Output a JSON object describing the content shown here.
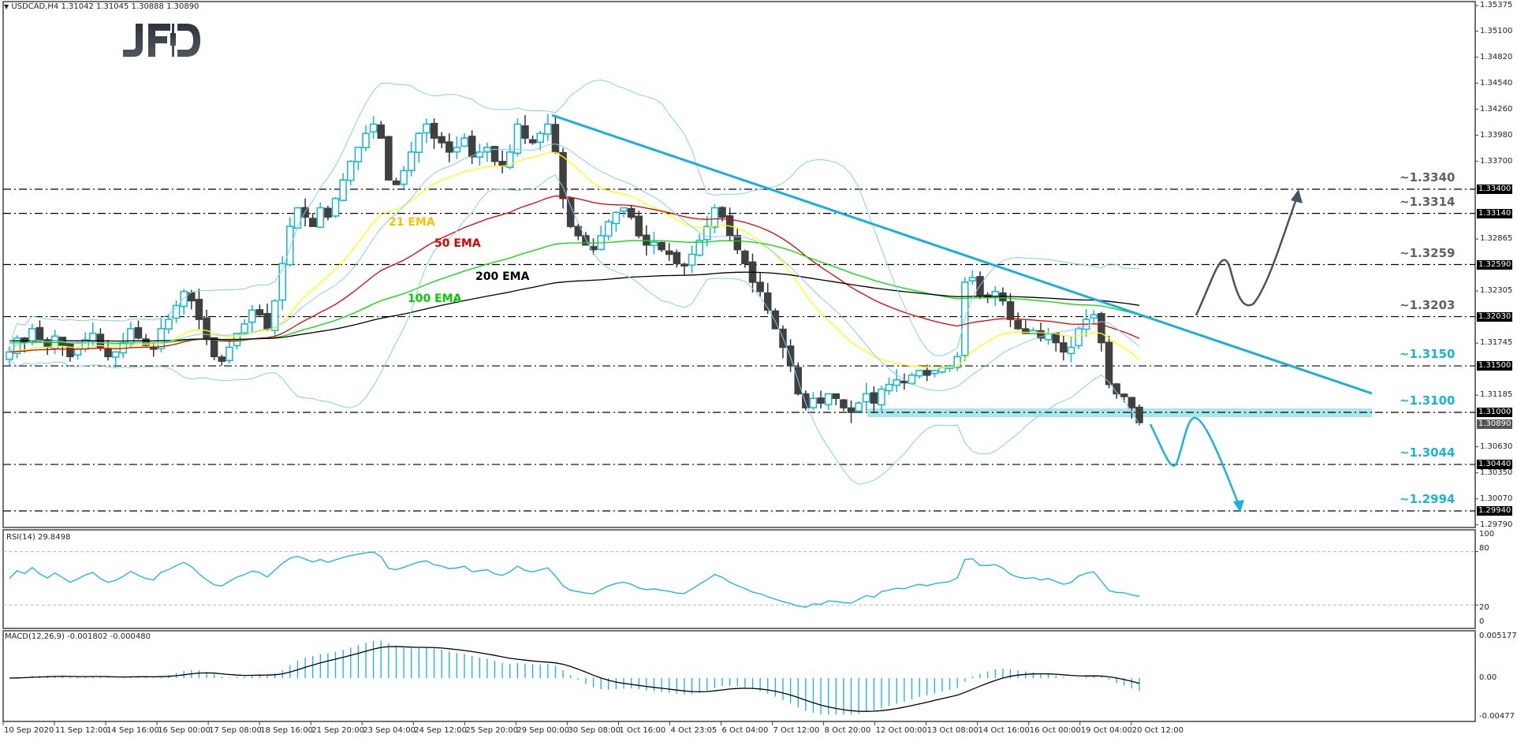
{
  "header": {
    "symbol_info": "USDCAD,H4  1.31042 1.31045 1.30888 1.30890",
    "logo": "JFD"
  },
  "colors": {
    "bull": "#12b5d6",
    "bear": "#404040",
    "trendline": "#1aaed8",
    "bollinger": "#87ceeb",
    "ema21": "#ffff00",
    "ema50": "#e00000",
    "ema100": "#00dd00",
    "ema200": "#000000",
    "support_zone": "#a8e8ec",
    "level_gray": "#5a6169",
    "level_cyan": "#1ab3d8",
    "bull_arrow": "#4a525b",
    "bear_arrow": "#1ab3d8"
  },
  "ema_labels": [
    {
      "text": "21 EMA",
      "color": "#f5c400",
      "x": 493,
      "y": 282
    },
    {
      "text": "50 EMA",
      "color": "#e00000",
      "x": 551,
      "y": 309
    },
    {
      "text": "200 EMA",
      "color": "#000000",
      "x": 603,
      "y": 351
    },
    {
      "text": "100 EMA",
      "color": "#00cc00",
      "x": 517,
      "y": 379
    }
  ],
  "price_axis": {
    "ticks": [
      "1.35375",
      "1.35100",
      "1.34820",
      "1.34540",
      "1.34260",
      "1.33980",
      "1.33700",
      "1.32865",
      "1.32305",
      "1.31745",
      "1.31185",
      "1.30630",
      "1.30350",
      "1.30070",
      "1.29790"
    ],
    "boxes": [
      "1.33400",
      "1.33140",
      "1.32590",
      "1.32030",
      "1.31500",
      "1.31000",
      "1.30440",
      "1.29940"
    ],
    "current": "1.30890"
  },
  "levels": [
    {
      "label": "~1.3340",
      "value": 1.334,
      "color": "gray"
    },
    {
      "label": "~1.3314",
      "value": 1.3314,
      "color": "gray"
    },
    {
      "label": "~1.3259",
      "value": 1.3259,
      "color": "gray"
    },
    {
      "label": "~1.3203",
      "value": 1.3203,
      "color": "gray"
    },
    {
      "label": "~1.3150",
      "value": 1.315,
      "color": "cyan"
    },
    {
      "label": "~1.3100",
      "value": 1.31,
      "color": "cyan"
    },
    {
      "label": "~1.3044",
      "value": 1.3044,
      "color": "cyan"
    },
    {
      "label": "~1.2994",
      "value": 1.2994,
      "color": "cyan"
    }
  ],
  "rsi": {
    "title": "RSI(14) 29.8498",
    "ticks": [
      "100",
      "80",
      "20",
      "0"
    ]
  },
  "macd": {
    "title": "MACD(12,26,9) -0.001802 -0.000480",
    "ticks": [
      "0.005177",
      "0.00",
      "-0.00477"
    ]
  },
  "dates": [
    "10 Sep 2020",
    "11 Sep 12:00",
    "14 Sep 16:00",
    "16 Sep 00:00",
    "17 Sep 08:00",
    "18 Sep 16:00",
    "21 Sep 20:00",
    "23 Sep 04:00",
    "24 Sep 12:00",
    "25 Sep 20:00",
    "29 Sep 00:00",
    "30 Sep 08:00",
    "1 Oct 16:00",
    "4 Oct 23:05",
    "6 Oct 04:00",
    "7 Oct 12:00",
    "8 Oct 20:00",
    "12 Oct 00:00",
    "13 Oct 08:00",
    "14 Oct 16:00",
    "16 Oct 00:00",
    "19 Oct 04:00",
    "20 Oct 12:00"
  ],
  "chart_data": {
    "type": "candlestick",
    "title": "USDCAD,H4",
    "ohlc_last": {
      "open": 1.31042,
      "high": 1.31045,
      "low": 1.30888,
      "close": 1.3089
    },
    "ylim": [
      1.2979,
      1.35375
    ],
    "x_labels": [
      "10 Sep 2020",
      "11 Sep 12:00",
      "14 Sep 16:00",
      "16 Sep 00:00",
      "17 Sep 08:00",
      "18 Sep 16:00",
      "21 Sep 20:00",
      "23 Sep 04:00",
      "24 Sep 12:00",
      "25 Sep 20:00",
      "29 Sep 00:00",
      "30 Sep 08:00",
      "1 Oct 16:00",
      "4 Oct 23:05",
      "6 Oct 04:00",
      "7 Oct 12:00",
      "8 Oct 20:00",
      "12 Oct 00:00",
      "13 Oct 08:00",
      "14 Oct 16:00",
      "16 Oct 00:00",
      "19 Oct 04:00",
      "20 Oct 12:00"
    ],
    "close_path": [
      1.3165,
      1.318,
      1.3175,
      1.319,
      1.3178,
      1.317,
      1.3182,
      1.3172,
      1.316,
      1.3168,
      1.3178,
      1.3185,
      1.317,
      1.316,
      1.3165,
      1.3175,
      1.319,
      1.318,
      1.3172,
      1.3168,
      1.319,
      1.32,
      1.3215,
      1.323,
      1.322,
      1.32,
      1.318,
      1.316,
      1.3155,
      1.317,
      1.3185,
      1.3195,
      1.321,
      1.3205,
      1.319,
      1.322,
      1.326,
      1.33,
      1.332,
      1.331,
      1.33,
      1.332,
      1.331,
      1.333,
      1.335,
      1.337,
      1.3385,
      1.34,
      1.341,
      1.3395,
      1.335,
      1.3345,
      1.336,
      1.338,
      1.34,
      1.341,
      1.3395,
      1.339,
      1.338,
      1.3385,
      1.3395,
      1.3375,
      1.338,
      1.3385,
      1.337,
      1.3365,
      1.338,
      1.341,
      1.3395,
      1.339,
      1.34,
      1.341,
      1.338,
      1.333,
      1.33,
      1.329,
      1.328,
      1.3275,
      1.329,
      1.3305,
      1.3315,
      1.332,
      1.331,
      1.329,
      1.328,
      1.3283,
      1.3275,
      1.327,
      1.326,
      1.3258,
      1.327,
      1.3285,
      1.33,
      1.332,
      1.331,
      1.329,
      1.3275,
      1.326,
      1.324,
      1.323,
      1.321,
      1.319,
      1.317,
      1.315,
      1.312,
      1.3105,
      1.3115,
      1.311,
      1.312,
      1.3115,
      1.3105,
      1.31,
      1.311,
      1.312,
      1.311,
      1.3125,
      1.313,
      1.3135,
      1.3133,
      1.314,
      1.3145,
      1.314,
      1.3145,
      1.3148,
      1.315,
      1.316,
      1.324,
      1.3245,
      1.3225,
      1.3225,
      1.323,
      1.322,
      1.32,
      1.319,
      1.3185,
      1.3188,
      1.318,
      1.3185,
      1.3175,
      1.3165,
      1.317,
      1.319,
      1.32,
      1.3205,
      1.3175,
      1.313,
      1.312,
      1.3117,
      1.3105,
      1.3089
    ],
    "levels": [
      1.334,
      1.3314,
      1.3259,
      1.3203,
      1.315,
      1.31,
      1.3044,
      1.2994
    ],
    "indicators": [
      "21 EMA",
      "50 EMA",
      "100 EMA",
      "200 EMA",
      "Bollinger Bands",
      "RSI(14) 29.8498",
      "MACD(12,26,9) -0.001802 -0.000480"
    ],
    "rsi_ylim": [
      0,
      100
    ],
    "rsi_levels": [
      20,
      80
    ],
    "rsi_last": 29.8498,
    "macd_ylim": [
      -0.00477,
      0.005177
    ],
    "macd_last": [
      -0.001802,
      -0.00048
    ],
    "annotations": [
      "Downtrend line from ~1.3425 (30 Sep) through ~1.3258 (15 Oct)",
      "Support zone ~1.3100",
      "Bullish scenario arrow to 1.3340",
      "Bearish scenario arrow to 1.2994"
    ]
  }
}
